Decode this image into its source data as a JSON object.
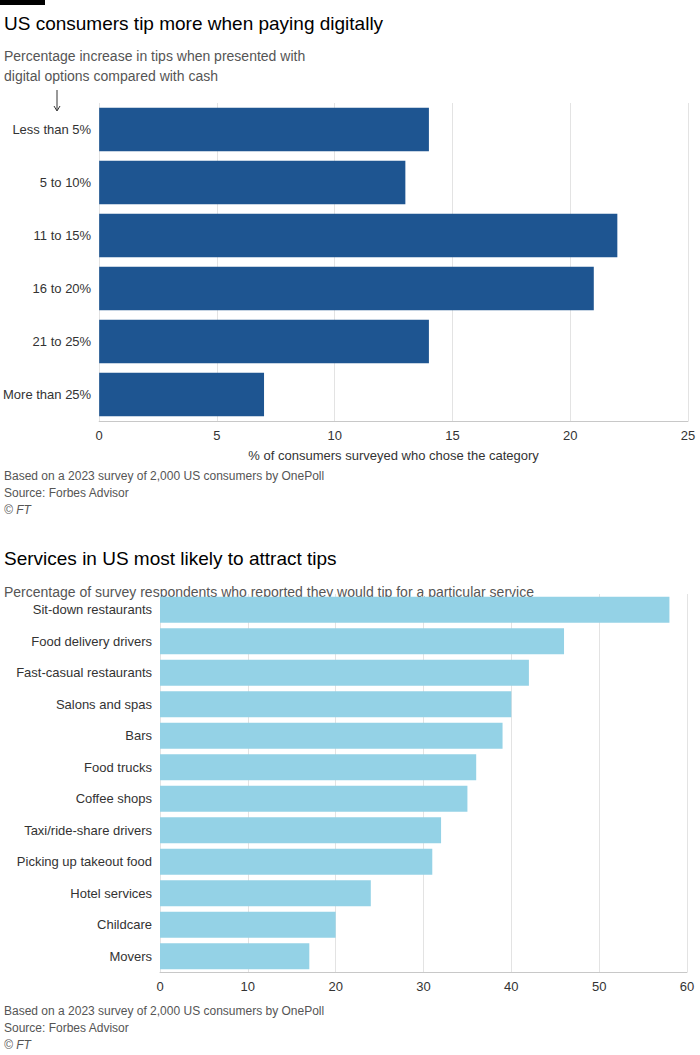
{
  "chart_data": [
    {
      "type": "bar",
      "orientation": "horizontal",
      "title": "US consumers tip more when paying digitally",
      "subtitle": "Percentage increase in tips when presented with digital options compared with cash",
      "x_label": "% of consumers surveyed who chose the category",
      "notes": [
        "Based on a 2023 survey of 2,000 US consumers by OnePoll",
        "Source: Forbes Advisor",
        "© FT"
      ],
      "categories": [
        "Less than 5%",
        "5 to 10%",
        "11 to 15%",
        "16 to 20%",
        "21 to 25%",
        "More than 25%"
      ],
      "values": [
        14,
        13,
        22,
        21,
        14,
        7
      ],
      "color": "#1e5591",
      "xlim": [
        0,
        25
      ],
      "xticks": [
        0,
        5,
        10,
        15,
        20,
        25
      ],
      "grid": true
    },
    {
      "type": "bar",
      "orientation": "horizontal",
      "title": "Services in US most likely to attract tips",
      "subtitle": "Percentage of survey respondents who reported they would tip for a particular service",
      "notes": [
        "Based on a 2023 survey of 2,000 US consumers by OnePoll",
        "Source: Forbes Advisor",
        "© FT"
      ],
      "categories": [
        "Sit-down restaurants",
        "Food delivery drivers",
        "Fast-casual restaurants",
        "Salons and spas",
        "Bars",
        "Food trucks",
        "Coffee shops",
        "Taxi/ride-share drivers",
        "Picking up takeout food",
        "Hotel services",
        "Childcare",
        "Movers"
      ],
      "values": [
        58,
        46,
        42,
        40,
        39,
        36,
        35,
        32,
        31,
        24,
        20,
        17
      ],
      "color": "#94d2e6",
      "xlim": [
        0,
        60
      ],
      "xticks": [
        0,
        10,
        20,
        30,
        40,
        50,
        60
      ],
      "grid": true
    }
  ]
}
